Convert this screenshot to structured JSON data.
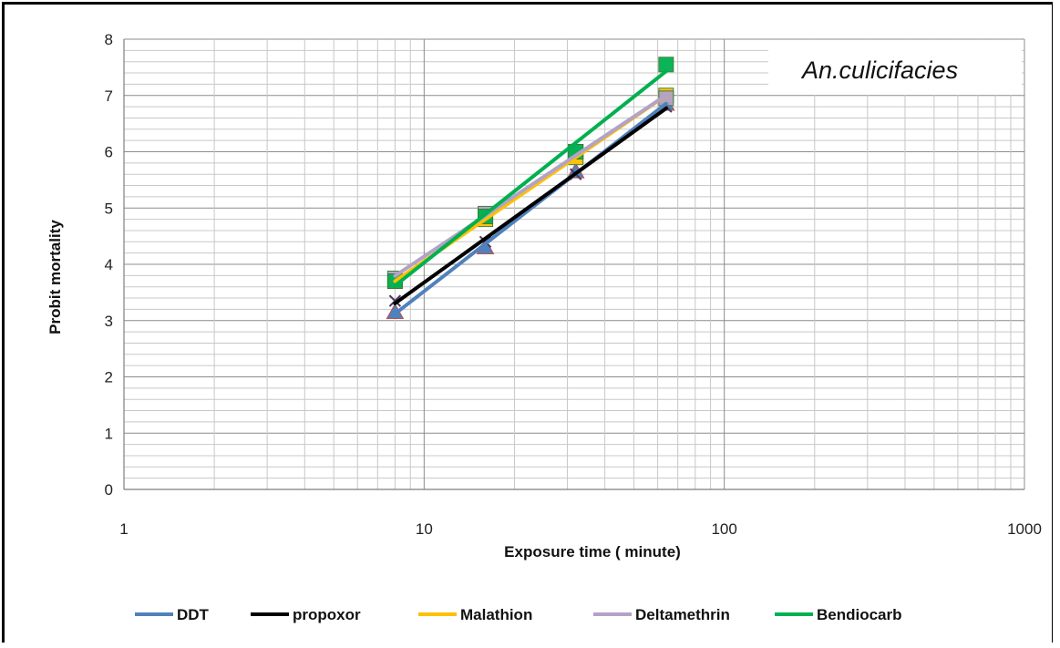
{
  "chart_data": {
    "type": "line",
    "title": "",
    "annotation": "An.culicifacies",
    "xlabel": "Exposure time ( minute)",
    "ylabel": "Probit mortality",
    "xscale": "log",
    "xlim": [
      1,
      1000
    ],
    "ylim": [
      0,
      8
    ],
    "xticks": [
      1,
      10,
      100,
      1000
    ],
    "xtick_labels": [
      "1",
      "10",
      "100",
      "1000"
    ],
    "yticks": [
      0,
      1,
      2,
      3,
      4,
      5,
      6,
      7,
      8
    ],
    "ytick_labels": [
      "0",
      "1",
      "2",
      "3",
      "4",
      "5",
      "6",
      "7",
      "8"
    ],
    "grid": true,
    "legend_position": "bottom",
    "x": [
      8,
      16,
      32,
      64
    ],
    "series": [
      {
        "name": "DDT",
        "color": "#4f81bd",
        "marker": "triangle",
        "values": [
          3.15,
          4.3,
          5.65,
          6.85
        ]
      },
      {
        "name": "propoxor",
        "color": "#000000",
        "marker": "x",
        "values": [
          3.35,
          4.4,
          5.6,
          6.8
        ]
      },
      {
        "name": "Malathion",
        "color": "#ffc000",
        "marker": "square",
        "values": [
          3.7,
          4.8,
          5.9,
          7.0
        ]
      },
      {
        "name": "Deltamethrin",
        "color": "#b3a2c7",
        "marker": "square",
        "values": [
          3.75,
          4.9,
          6.0,
          6.95
        ]
      },
      {
        "name": "Bendiocarb",
        "color": "#00b050",
        "marker": "square",
        "values": [
          3.7,
          4.85,
          6.0,
          7.55
        ]
      }
    ]
  }
}
